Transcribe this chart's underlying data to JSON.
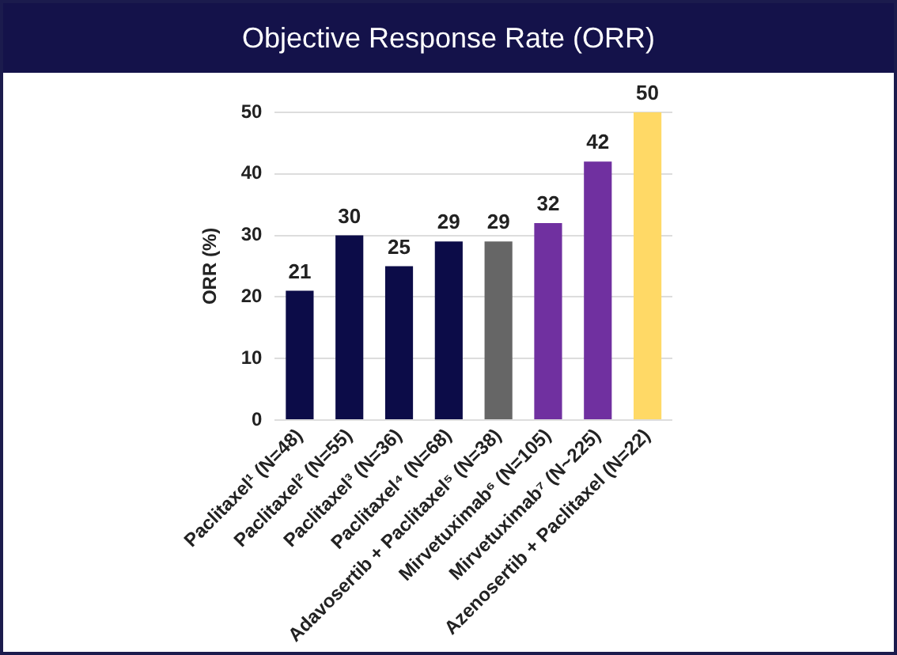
{
  "chart_data": {
    "type": "bar",
    "title": "Objective Response Rate (ORR)",
    "ylabel": "ORR (%)",
    "categories": [
      "Paclitaxel¹ (N=48)",
      "Paclitaxel² (N=55)",
      "Paclitaxel³ (N=36)",
      "Paclitaxel⁴ (N=68)",
      "Adavosertib + Paclitaxel⁵ (N=38)",
      "Mirvetuximab⁶ (N=105)",
      "Mirvetuximab⁷ (N~225)",
      "Azenosertib + Paclitaxel (N=22)"
    ],
    "values": [
      21,
      30,
      25,
      29,
      29,
      32,
      42,
      50
    ],
    "colors": [
      "#0c0c48",
      "#0c0c48",
      "#0c0c48",
      "#0c0c48",
      "#666666",
      "#7030a0",
      "#7030a0",
      "#ffd966"
    ],
    "ylim": [
      0,
      50
    ],
    "yticks": [
      0,
      10,
      20,
      30,
      40,
      50
    ],
    "grid": "y",
    "data_labels": true,
    "legend": false
  }
}
